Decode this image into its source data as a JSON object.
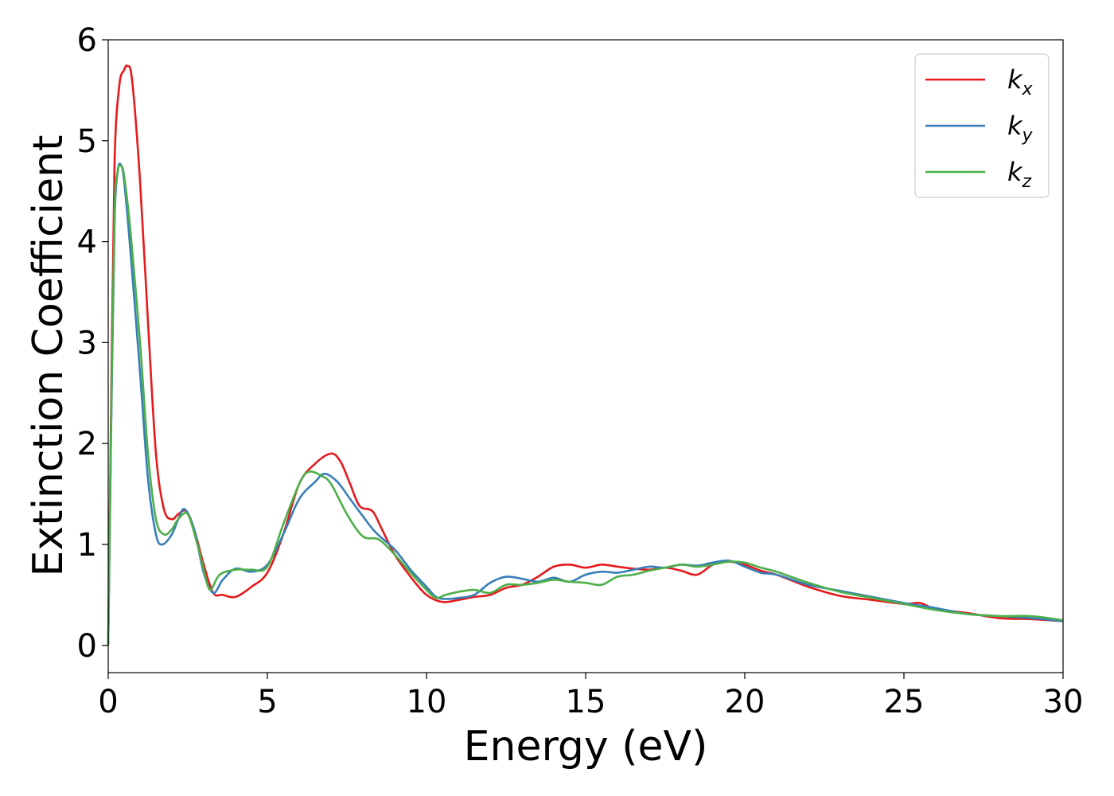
{
  "chart_data": {
    "type": "line",
    "title": "",
    "xlabel": "Energy (eV)",
    "ylabel": "Extinction Coefficient",
    "xlim": [
      0,
      30
    ],
    "ylim": [
      -0.27,
      6.0
    ],
    "xticks": [
      0,
      5,
      10,
      15,
      20,
      25,
      30
    ],
    "yticks": [
      0,
      1,
      2,
      3,
      4,
      5,
      6
    ],
    "grid": false,
    "legend_position": "top-right",
    "series": [
      {
        "name": "k",
        "subscript": "x",
        "color": "#e41a1c",
        "x": [
          0,
          0.1,
          0.2,
          0.35,
          0.5,
          0.6,
          0.75,
          1.0,
          1.25,
          1.5,
          1.75,
          2.0,
          2.2,
          2.45,
          2.7,
          3.0,
          3.3,
          3.6,
          4.0,
          4.5,
          5.0,
          5.5,
          6.0,
          6.5,
          7.0,
          7.3,
          7.6,
          7.9,
          8.3,
          8.6,
          9.0,
          9.5,
          10.0,
          10.5,
          11.0,
          11.5,
          12.0,
          12.5,
          13.0,
          13.5,
          14.0,
          14.5,
          15.0,
          15.5,
          16.0,
          16.5,
          17.0,
          17.5,
          18.0,
          18.5,
          19.0,
          19.5,
          20.0,
          20.5,
          21.0,
          22.0,
          23.0,
          24.0,
          25.0,
          25.5,
          26.0,
          27.0,
          28.0,
          29.0,
          30.0
        ],
        "y": [
          0.0,
          2.6,
          4.8,
          5.55,
          5.7,
          5.74,
          5.6,
          4.6,
          3.2,
          1.9,
          1.35,
          1.25,
          1.3,
          1.33,
          1.15,
          0.8,
          0.52,
          0.5,
          0.48,
          0.58,
          0.72,
          1.1,
          1.6,
          1.8,
          1.9,
          1.82,
          1.6,
          1.38,
          1.33,
          1.15,
          0.9,
          0.68,
          0.5,
          0.43,
          0.45,
          0.48,
          0.5,
          0.57,
          0.6,
          0.68,
          0.78,
          0.8,
          0.77,
          0.8,
          0.78,
          0.76,
          0.75,
          0.77,
          0.74,
          0.7,
          0.8,
          0.83,
          0.8,
          0.74,
          0.7,
          0.58,
          0.49,
          0.45,
          0.41,
          0.42,
          0.36,
          0.32,
          0.27,
          0.26,
          0.24
        ]
      },
      {
        "name": "k",
        "subscript": "y",
        "color": "#377eb8",
        "x": [
          0,
          0.1,
          0.2,
          0.3,
          0.4,
          0.5,
          0.7,
          1.0,
          1.25,
          1.5,
          1.7,
          2.0,
          2.2,
          2.4,
          2.7,
          3.0,
          3.3,
          3.6,
          4.0,
          4.5,
          5.0,
          5.5,
          6.0,
          6.5,
          6.8,
          7.2,
          7.6,
          8.0,
          8.4,
          9.0,
          9.5,
          10.0,
          10.3,
          10.6,
          11.0,
          11.5,
          12.0,
          12.5,
          13.0,
          13.5,
          14.0,
          14.5,
          15.0,
          15.5,
          16.0,
          16.5,
          17.0,
          17.5,
          18.0,
          18.5,
          19.0,
          19.5,
          20.0,
          20.5,
          21.0,
          22.0,
          23.0,
          24.0,
          25.0,
          26.0,
          27.0,
          28.0,
          29.0,
          30.0
        ],
        "y": [
          0.0,
          2.3,
          4.2,
          4.7,
          4.76,
          4.6,
          3.9,
          2.7,
          1.65,
          1.1,
          1.0,
          1.1,
          1.25,
          1.35,
          1.15,
          0.72,
          0.52,
          0.65,
          0.76,
          0.73,
          0.8,
          1.1,
          1.45,
          1.62,
          1.7,
          1.62,
          1.45,
          1.28,
          1.12,
          0.95,
          0.75,
          0.58,
          0.48,
          0.46,
          0.47,
          0.5,
          0.62,
          0.68,
          0.66,
          0.63,
          0.67,
          0.63,
          0.7,
          0.73,
          0.72,
          0.75,
          0.78,
          0.77,
          0.8,
          0.79,
          0.82,
          0.84,
          0.78,
          0.72,
          0.7,
          0.6,
          0.54,
          0.48,
          0.42,
          0.37,
          0.31,
          0.29,
          0.27,
          0.24
        ]
      },
      {
        "name": "k",
        "subscript": "z",
        "color": "#4daf4a",
        "x": [
          0,
          0.1,
          0.2,
          0.3,
          0.4,
          0.5,
          0.7,
          1.0,
          1.25,
          1.5,
          1.75,
          2.0,
          2.2,
          2.5,
          2.8,
          3.0,
          3.2,
          3.5,
          4.0,
          4.5,
          5.0,
          5.5,
          6.0,
          6.3,
          6.7,
          7.0,
          7.5,
          8.0,
          8.5,
          9.0,
          9.5,
          10.0,
          10.3,
          10.6,
          11.0,
          11.5,
          12.0,
          12.5,
          13.0,
          13.5,
          14.0,
          14.5,
          15.0,
          15.5,
          16.0,
          16.5,
          17.0,
          17.5,
          18.0,
          18.5,
          19.0,
          19.5,
          20.0,
          20.5,
          21.0,
          22.0,
          23.0,
          24.0,
          25.0,
          26.0,
          27.0,
          28.0,
          29.0,
          30.0
        ],
        "y": [
          0.0,
          2.4,
          4.3,
          4.7,
          4.75,
          4.65,
          4.1,
          3.0,
          1.9,
          1.25,
          1.1,
          1.15,
          1.25,
          1.3,
          1.0,
          0.75,
          0.55,
          0.7,
          0.75,
          0.75,
          0.78,
          1.2,
          1.6,
          1.72,
          1.68,
          1.6,
          1.3,
          1.08,
          1.05,
          0.9,
          0.72,
          0.55,
          0.47,
          0.5,
          0.53,
          0.55,
          0.52,
          0.6,
          0.6,
          0.62,
          0.65,
          0.63,
          0.62,
          0.6,
          0.68,
          0.7,
          0.74,
          0.77,
          0.8,
          0.78,
          0.8,
          0.83,
          0.82,
          0.77,
          0.73,
          0.62,
          0.53,
          0.47,
          0.41,
          0.35,
          0.31,
          0.29,
          0.29,
          0.25
        ]
      }
    ]
  }
}
